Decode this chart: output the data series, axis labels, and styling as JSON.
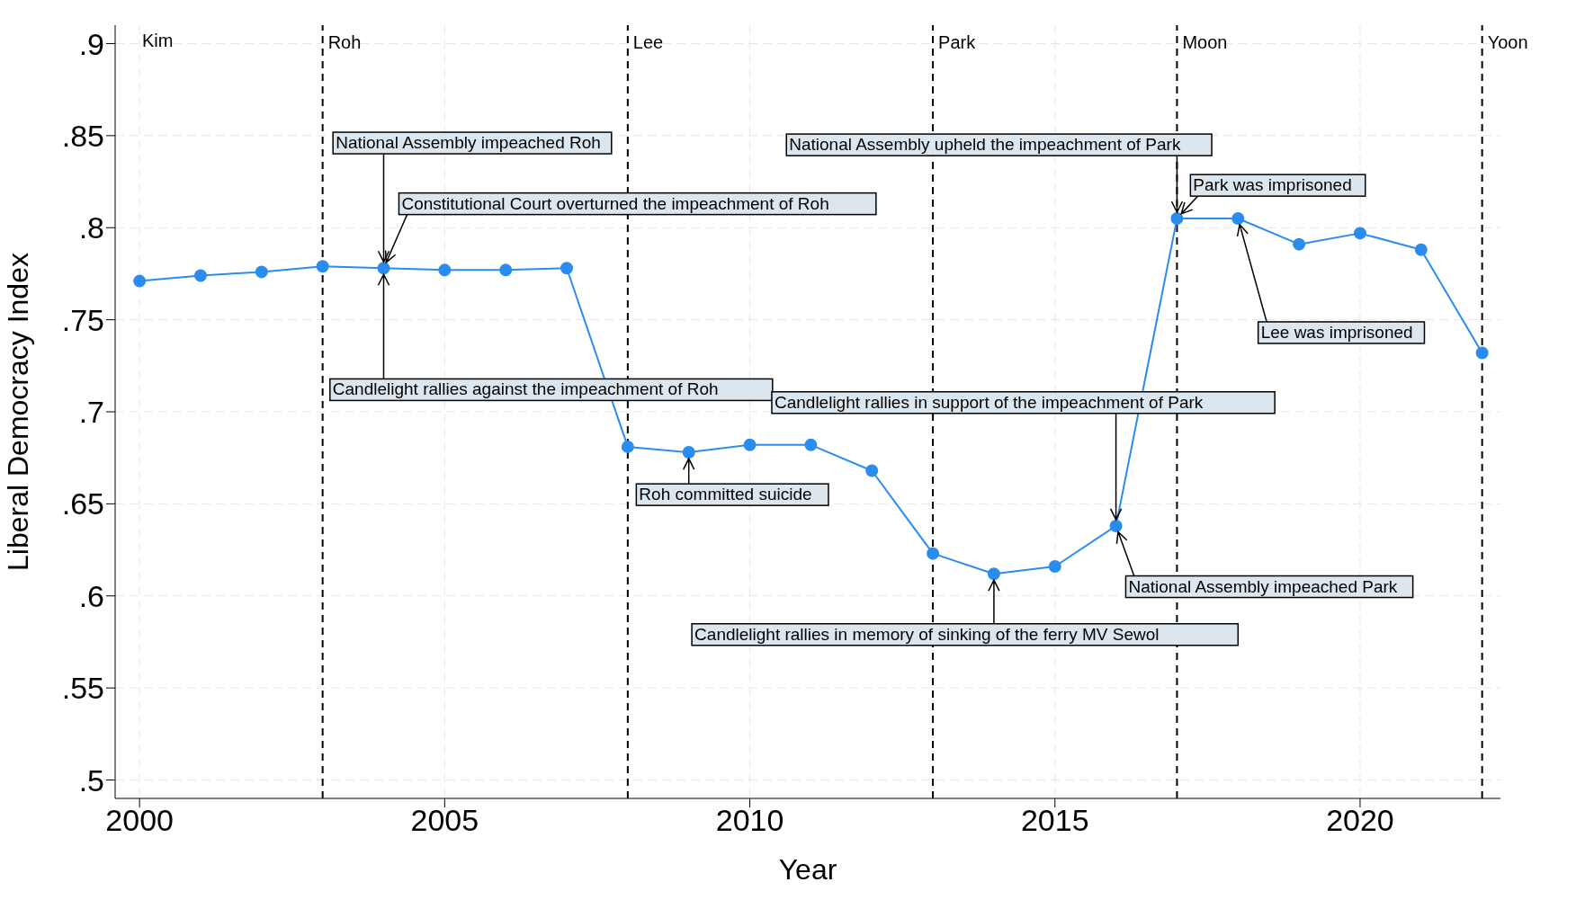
{
  "chart_data": {
    "type": "line",
    "xlabel": "Year",
    "ylabel": "Liberal Democracy Index",
    "x": [
      2000,
      2001,
      2002,
      2003,
      2004,
      2005,
      2006,
      2007,
      2008,
      2009,
      2010,
      2011,
      2012,
      2013,
      2014,
      2015,
      2016,
      2017,
      2018,
      2019,
      2020,
      2021,
      2022
    ],
    "series": [
      {
        "color": "#2b8cf0",
        "values": [
          0.771,
          0.774,
          0.776,
          0.779,
          0.778,
          0.777,
          0.777,
          0.778,
          0.681,
          0.678,
          0.682,
          0.682,
          0.668,
          0.623,
          0.612,
          0.616,
          0.638,
          0.805,
          0.805,
          0.791,
          0.797,
          0.788,
          0.732
        ]
      }
    ],
    "xlim": [
      1999.6,
      2022.3
    ],
    "ylim": [
      0.49,
      0.91
    ],
    "xticks": [
      2000,
      2005,
      2010,
      2015,
      2020
    ],
    "yticks": [
      {
        "value": 0.5,
        "label": ".5"
      },
      {
        "value": 0.55,
        "label": ".55"
      },
      {
        "value": 0.6,
        "label": ".6"
      },
      {
        "value": 0.65,
        "label": ".65"
      },
      {
        "value": 0.7,
        "label": ".7"
      },
      {
        "value": 0.75,
        "label": ".75"
      },
      {
        "value": 0.8,
        "label": ".8"
      },
      {
        "value": 0.85,
        "label": ".85"
      },
      {
        "value": 0.9,
        "label": ".9"
      }
    ],
    "grid": true,
    "marker": "circle",
    "line_style": "solid",
    "ref_lines": [
      {
        "axis": "x",
        "value": 2003,
        "label": "Roh",
        "color": "#000000",
        "line_style": "dashed"
      },
      {
        "axis": "x",
        "value": 2008,
        "label": "Lee",
        "color": "#000000",
        "line_style": "dashed"
      },
      {
        "axis": "x",
        "value": 2013,
        "label": "Park",
        "color": "#000000",
        "line_style": "dashed"
      },
      {
        "axis": "x",
        "value": 2017,
        "label": "Moon",
        "color": "#000000",
        "line_style": "dashed"
      },
      {
        "axis": "x",
        "value": 2022,
        "label": "Yoon",
        "color": "#000000",
        "line_style": "dashed"
      }
    ],
    "annotations": [
      "Kim",
      {
        "text": "National Assembly impeached Roh",
        "x": 2004,
        "y": 0.778
      },
      {
        "text": "Constitutional Court overturned the impeachment of Roh",
        "x": 2004,
        "y": 0.778
      },
      {
        "text": "Candlelight rallies against the impeachment of Roh",
        "x": 2004,
        "y": 0.778
      },
      {
        "text": "Roh committed suicide",
        "x": 2009,
        "y": 0.678
      },
      {
        "text": "Candlelight rallies in memory of sinking of the ferry MV Sewol",
        "x": 2014,
        "y": 0.612
      },
      {
        "text": "National Assembly impeached Park",
        "x": 2016,
        "y": 0.638
      },
      {
        "text": "Candlelight rallies in support of the impeachment of Park",
        "x": 2016,
        "y": 0.638
      },
      {
        "text": "National Assembly upheld the impeachment of Park",
        "x": 2017,
        "y": 0.805
      },
      {
        "text": "Park was imprisoned",
        "x": 2017,
        "y": 0.805
      },
      {
        "text": "Lee was imprisoned",
        "x": 2018,
        "y": 0.805
      }
    ]
  }
}
